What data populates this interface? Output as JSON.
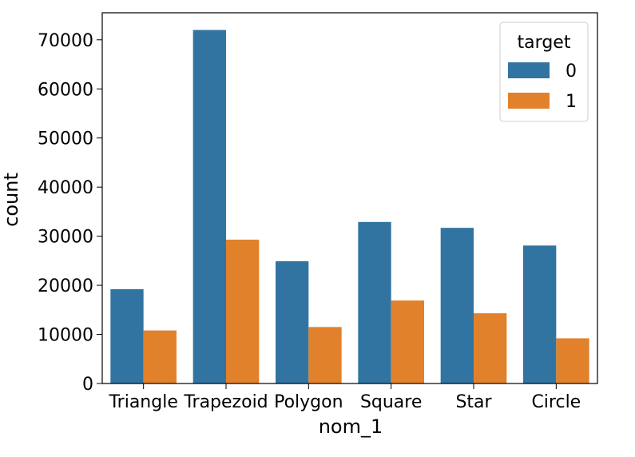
{
  "chart_data": {
    "type": "bar",
    "title": "",
    "xlabel": "nom_1",
    "ylabel": "count",
    "categories": [
      "Triangle",
      "Trapezoid",
      "Polygon",
      "Square",
      "Star",
      "Circle"
    ],
    "series": [
      {
        "name": "0",
        "color": "#3274a1",
        "values": [
          19200,
          72000,
          24900,
          32900,
          31700,
          28100
        ]
      },
      {
        "name": "1",
        "color": "#e1812c",
        "values": [
          10800,
          29300,
          11500,
          16900,
          14300,
          9200
        ]
      }
    ],
    "ylim": [
      0,
      75500
    ],
    "yticks": [
      0,
      10000,
      20000,
      30000,
      40000,
      50000,
      60000,
      70000
    ],
    "grid": false,
    "legend": {
      "title": "target",
      "position": "top-right"
    }
  }
}
